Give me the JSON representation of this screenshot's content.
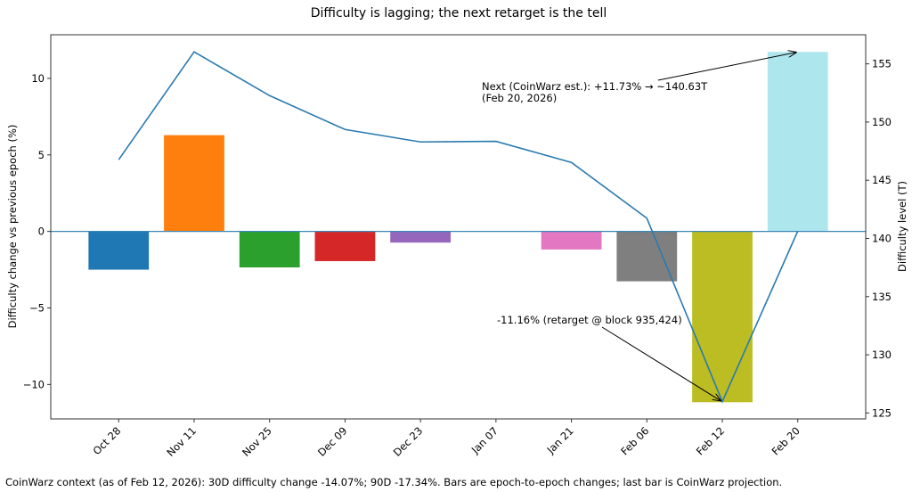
{
  "chart_data": {
    "type": "bar",
    "title": "Difficulty is lagging; the next retarget is the tell",
    "categories": [
      "Oct 28",
      "Nov 11",
      "Nov 25",
      "Dec 09",
      "Dec 23",
      "Jan 07",
      "Jan 21",
      "Feb 06",
      "Feb 12",
      "Feb 20"
    ],
    "bar_values": [
      -2.5,
      6.29,
      -2.35,
      -1.94,
      -0.73,
      0.03,
      -1.18,
      -3.26,
      -11.16,
      11.73
    ],
    "bar_colors": [
      "#1f77b4",
      "#ff7f0e",
      "#2ca02c",
      "#d62728",
      "#9467bd",
      "#8c564b",
      "#e377c2",
      "#7f7f7f",
      "#bcbd22",
      "#aee6ee"
    ],
    "line_values": [
      146.76,
      156.03,
      152.27,
      149.36,
      148.29,
      148.34,
      146.53,
      141.73,
      125.98,
      140.63
    ],
    "line_color": "#2a7ab0",
    "zero_line_color": "#3a87b8",
    "ylabel": "Difficulty change vs previous epoch (%)",
    "y2label": "Difficulty level (T)",
    "ylim": [
      -12.25,
      12.85
    ],
    "y2lim": [
      124.49,
      157.5
    ],
    "yticks": [
      -10,
      -5,
      0,
      5,
      10
    ],
    "y2ticks": [
      125,
      130,
      135,
      140,
      145,
      150,
      155
    ],
    "grid": false,
    "annotations": [
      {
        "lines": [
          "Next (CoinWarz est.): +11.73% → ~140.63T",
          "(Feb 20, 2026)"
        ],
        "target_category": "Feb 20",
        "target_value_left": 11.73
      },
      {
        "lines": [
          "-11.16% (retarget @ block 935,424)"
        ],
        "target_category": "Feb 12",
        "target_value_right": 125.98
      }
    ],
    "footnote": "CoinWarz context (as of Feb 12, 2026): 30D difficulty change -14.07%; 90D -17.34%. Bars are epoch-to-epoch changes; last bar is CoinWarz projection."
  }
}
